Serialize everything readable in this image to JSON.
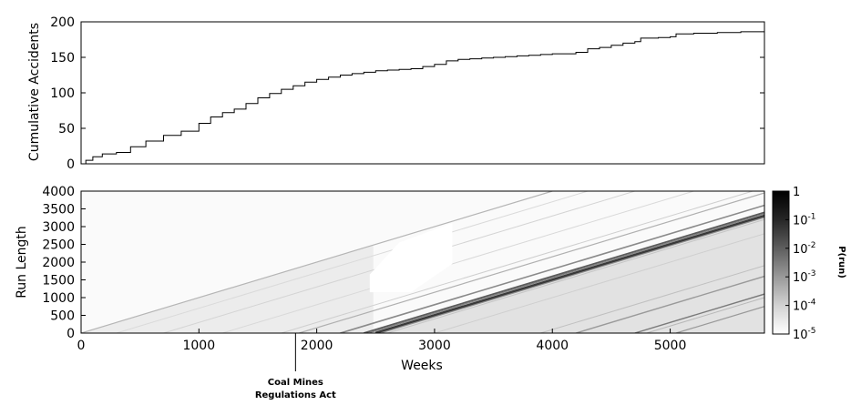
{
  "chart_data": [
    {
      "type": "line",
      "ylabel": "Cumulative Accidents",
      "xlim": [
        0,
        5800
      ],
      "ylim": [
        0,
        200
      ],
      "yticks": [
        0,
        50,
        100,
        150,
        200
      ],
      "grid": false,
      "series": [
        {
          "style": "step",
          "x": [
            0,
            40,
            100,
            180,
            300,
            420,
            550,
            700,
            850,
            1000,
            1100,
            1200,
            1300,
            1400,
            1500,
            1600,
            1700,
            1800,
            1900,
            2000,
            2100,
            2200,
            2300,
            2400,
            2500,
            2600,
            2700,
            2800,
            2900,
            3000,
            3100,
            3200,
            3300,
            3400,
            3500,
            3600,
            3700,
            3800,
            3900,
            4000,
            4100,
            4200,
            4300,
            4400,
            4500,
            4600,
            4700,
            4750,
            4800,
            4900,
            5000,
            5050,
            5200,
            5400,
            5600,
            5800
          ],
          "y": [
            0,
            5,
            10,
            14,
            16,
            24,
            32,
            40,
            46,
            57,
            66,
            72,
            77,
            85,
            93,
            99,
            105,
            110,
            115,
            119,
            122,
            125,
            127,
            129,
            131,
            132,
            133,
            134,
            137,
            140,
            145,
            147,
            148,
            149,
            150,
            151,
            152,
            153,
            154,
            155,
            155,
            157,
            162,
            164,
            167,
            170,
            172,
            177,
            177,
            178,
            179,
            183,
            184,
            185,
            186,
            187
          ]
        }
      ]
    },
    {
      "type": "heatmap",
      "xlabel": "Weeks",
      "ylabel": "Run Length",
      "xlim": [
        0,
        5800
      ],
      "ylim": [
        0,
        4000
      ],
      "xticks": [
        0,
        1000,
        2000,
        3000,
        4000,
        5000
      ],
      "yticks": [
        0,
        500,
        1000,
        1500,
        2000,
        2500,
        3000,
        3500,
        4000
      ],
      "colormap": "white-to-black (log scale)",
      "colorbar": {
        "label": "P(run)",
        "ticks": [
          {
            "base": "1",
            "exp": ""
          },
          {
            "base": "10",
            "exp": "-1"
          },
          {
            "base": "10",
            "exp": "-2"
          },
          {
            "base": "10",
            "exp": "-3"
          },
          {
            "base": "10",
            "exp": "-4"
          },
          {
            "base": "10",
            "exp": "-5"
          }
        ]
      },
      "annotations": [
        {
          "x": 1820,
          "text_lines": [
            "Coal Mines",
            "Regulations Act"
          ]
        }
      ]
    }
  ],
  "colors": {
    "line": "#000000",
    "axes": "#000000",
    "background": "#ffffff"
  }
}
